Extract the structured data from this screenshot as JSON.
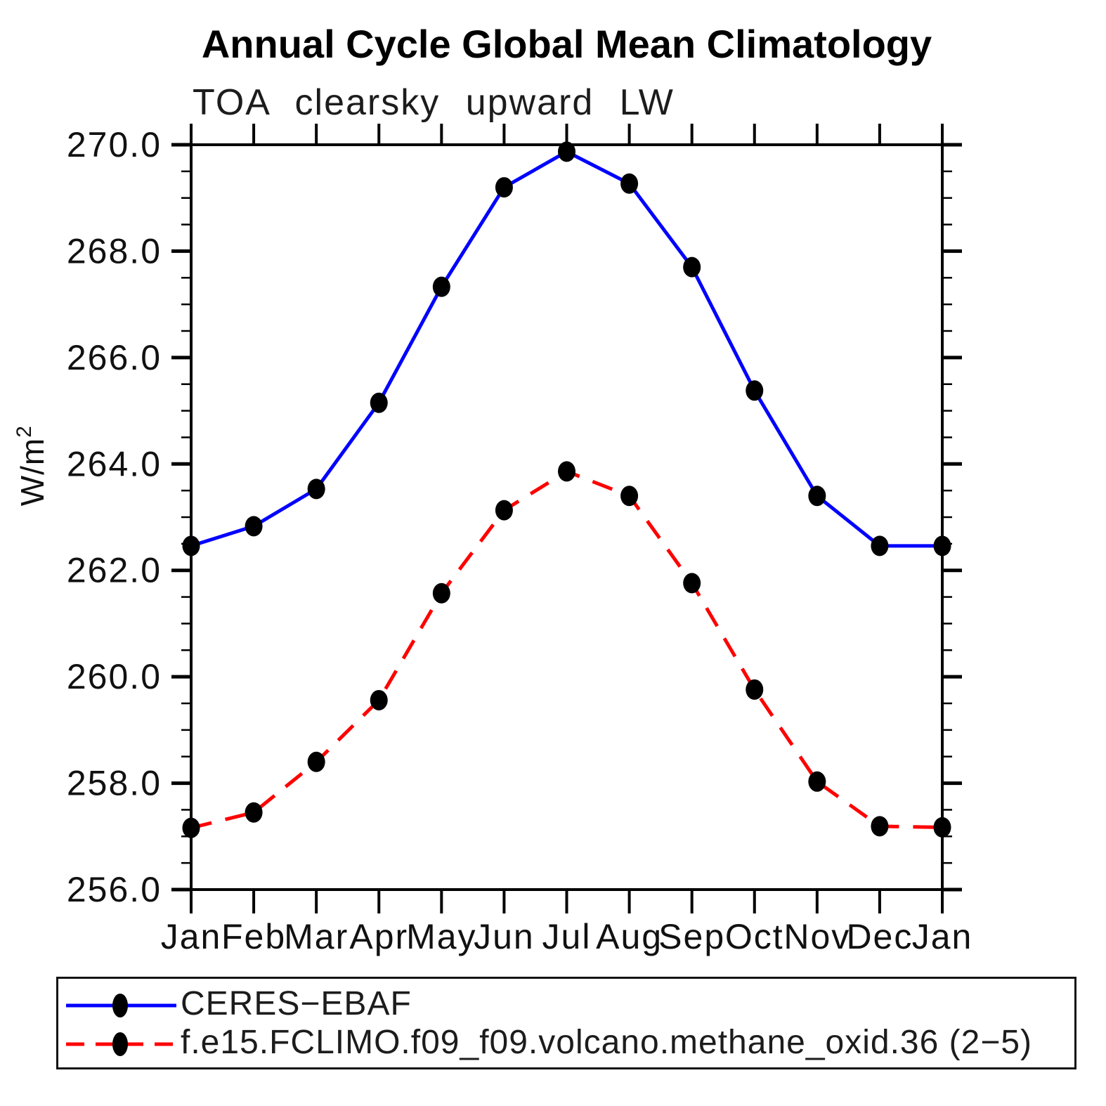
{
  "chart_data": {
    "type": "line",
    "title": "Annual Cycle Global Mean Climatology",
    "subtitle": "TOA clearsky upward LW",
    "xlabel": "",
    "ylabel": "W/m²",
    "categories": [
      "Jan",
      "Feb",
      "Mar",
      "Apr",
      "May",
      "Jun",
      "Jul",
      "Aug",
      "Sep",
      "Oct",
      "Nov",
      "Dec",
      "Jan"
    ],
    "ylim": [
      256.0,
      270.0
    ],
    "y_major_step": 2.0,
    "y_minor_step": 0.5,
    "y_tick_labels": [
      "256.0",
      "258.0",
      "260.0",
      "262.0",
      "264.0",
      "266.0",
      "268.0",
      "270.0"
    ],
    "grid": false,
    "legend_position": "bottom-box",
    "axis_color": "#000000",
    "marker": "filled-ellipse",
    "marker_color": "#000000",
    "series": [
      {
        "name": "CERES−EBAF",
        "color": "#0000ff",
        "style": "solid",
        "values": [
          262.46,
          262.83,
          263.53,
          265.15,
          267.33,
          269.2,
          269.87,
          269.27,
          267.7,
          265.38,
          263.4,
          262.46,
          262.46
        ]
      },
      {
        "name": "f.e15.FCLIMO.f09_f09.volcano.methane_oxid.36 (2−5)",
        "color": "#ff0000",
        "style": "dashed",
        "values": [
          257.16,
          257.45,
          258.4,
          259.56,
          261.57,
          263.13,
          263.86,
          263.4,
          261.76,
          259.76,
          258.03,
          257.19,
          257.17
        ]
      }
    ]
  }
}
